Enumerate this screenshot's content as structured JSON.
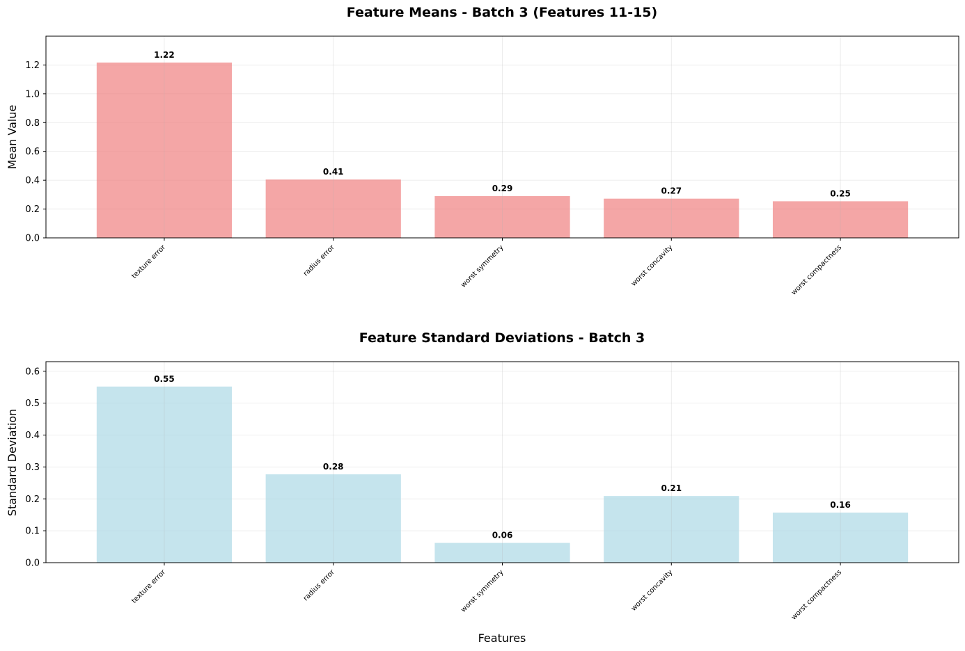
{
  "chart_data": [
    {
      "type": "bar",
      "title": "Feature Means - Batch 3 (Features 11-15)",
      "xlabel": "",
      "ylabel": "Mean Value",
      "categories": [
        "texture error",
        "radius error",
        "worst symmetry",
        "worst concavity",
        "worst compactness"
      ],
      "values": [
        1.217,
        0.405,
        0.29,
        0.272,
        0.254
      ],
      "value_labels": [
        "1.22",
        "0.41",
        "0.29",
        "0.27",
        "0.25"
      ],
      "ylim": [
        0,
        1.4
      ],
      "yticks": [
        0.0,
        0.2,
        0.4,
        0.6,
        0.8,
        1.0,
        1.2
      ],
      "ytick_labels": [
        "0.0",
        "0.2",
        "0.4",
        "0.6",
        "0.8",
        "1.0",
        "1.2"
      ],
      "bar_color": "#f08080",
      "bar_opacity": 0.7,
      "grid": true
    },
    {
      "type": "bar",
      "title": "Feature Standard Deviations - Batch 3",
      "xlabel": "Features",
      "ylabel": "Standard Deviation",
      "categories": [
        "texture error",
        "radius error",
        "worst symmetry",
        "worst concavity",
        "worst compactness"
      ],
      "values": [
        0.552,
        0.277,
        0.062,
        0.209,
        0.157
      ],
      "value_labels": [
        "0.55",
        "0.28",
        "0.06",
        "0.21",
        "0.16"
      ],
      "ylim": [
        0,
        0.63
      ],
      "yticks": [
        0.0,
        0.1,
        0.2,
        0.3,
        0.4,
        0.5,
        0.6
      ],
      "ytick_labels": [
        "0.0",
        "0.1",
        "0.2",
        "0.3",
        "0.4",
        "0.5",
        "0.6"
      ],
      "bar_color": "#add8e6",
      "bar_opacity": 0.7,
      "grid": true
    }
  ]
}
